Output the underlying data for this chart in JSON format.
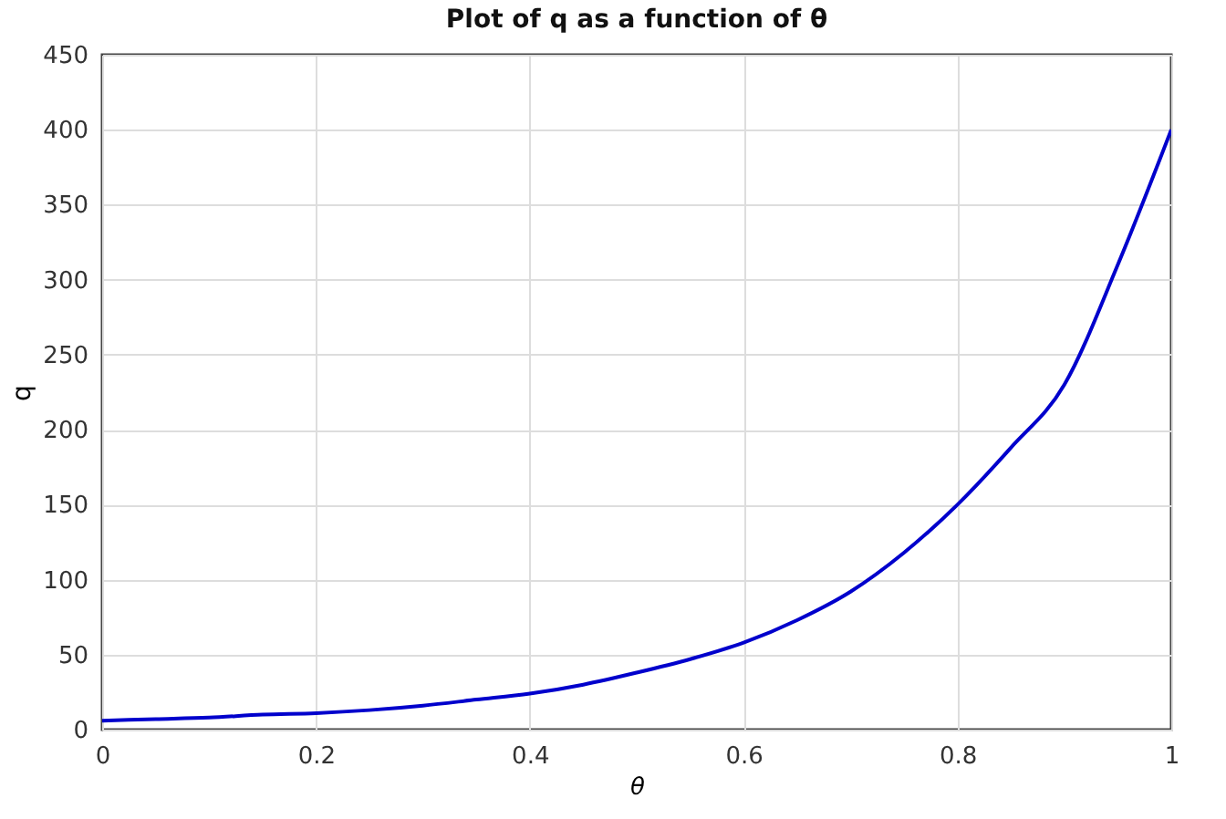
{
  "chart_data": {
    "type": "line",
    "title": "Plot of q as a function of θ",
    "xlabel": "θ",
    "ylabel": "q",
    "x": [
      0,
      0.05,
      0.1,
      0.15,
      0.2,
      0.25,
      0.3,
      0.35,
      0.4,
      0.45,
      0.5,
      0.55,
      0.6,
      0.65,
      0.7,
      0.75,
      0.8,
      0.85,
      0.9,
      0.95,
      1
    ],
    "series": [
      {
        "color": "#0000cc",
        "values": [
          6,
          7,
          8,
          10,
          11,
          13,
          16,
          20,
          24,
          30,
          38,
          47,
          58,
          73,
          92,
          118,
          150,
          188,
          230,
          310,
          400
        ]
      }
    ],
    "xlim": [
      0,
      1
    ],
    "xticks": [
      0,
      0.2,
      0.4,
      0.6,
      0.8,
      1
    ],
    "ylim": [
      0,
      450
    ],
    "yticks": [
      0,
      50,
      100,
      150,
      200,
      250,
      300,
      350,
      400,
      450
    ],
    "grid": true,
    "marker": "none",
    "line_style": "solid"
  }
}
